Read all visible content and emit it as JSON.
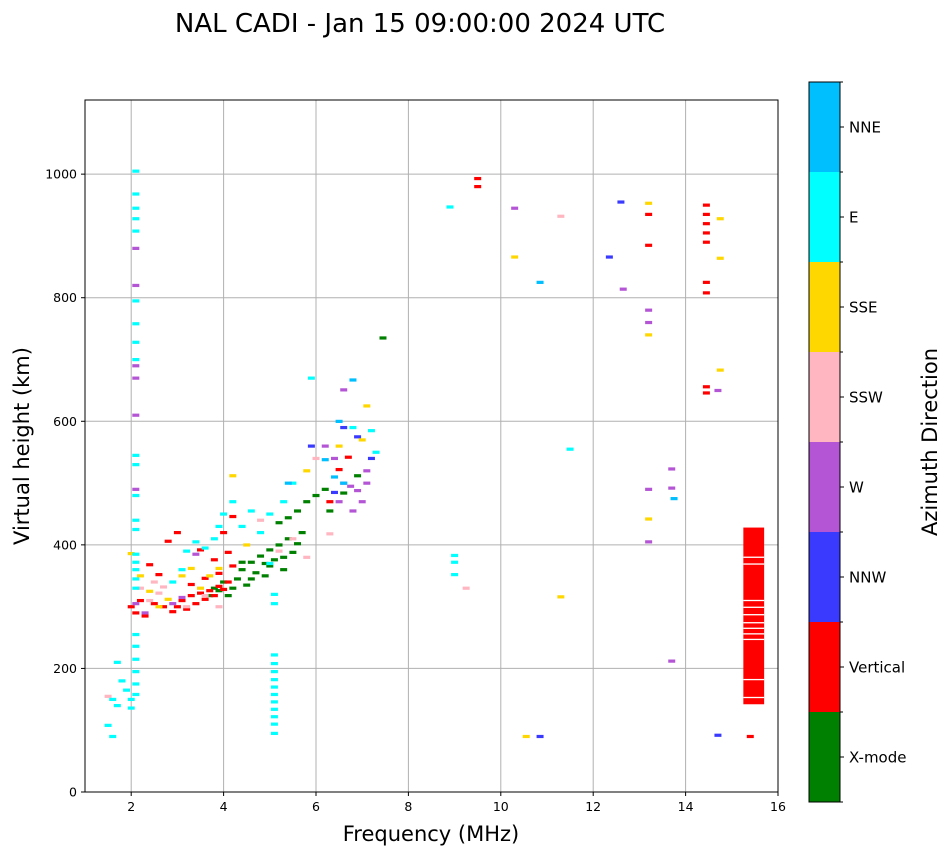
{
  "chart_data": {
    "type": "scatter",
    "title": "NAL CADI - Jan 15 09:00:00 2024 UTC",
    "xlabel": "Frequency (MHz)",
    "ylabel": "Virtual height (km)",
    "xlim": [
      1,
      16
    ],
    "ylim": [
      0,
      1120
    ],
    "x_ticks": [
      "2",
      "4",
      "6",
      "8",
      "10",
      "12",
      "14",
      "16"
    ],
    "y_ticks": [
      "0",
      "200",
      "400",
      "600",
      "800",
      "1000"
    ],
    "grid": true,
    "colorbar": {
      "title": "Azimuth Direction",
      "placement": "right",
      "categories": [
        {
          "name": "X-mode",
          "color": "#008000"
        },
        {
          "name": "Vertical",
          "color": "#ff0000"
        },
        {
          "name": "NNW",
          "color": "#3a3aff"
        },
        {
          "name": "W",
          "color": "#b455d5"
        },
        {
          "name": "SSW",
          "color": "#ffb6c1"
        },
        {
          "name": "SSE",
          "color": "#ffd700"
        },
        {
          "name": "E",
          "color": "#00ffff"
        },
        {
          "name": "NNE",
          "color": "#00bfff"
        }
      ]
    },
    "series": [
      {
        "name": "X-mode",
        "color": "#008000",
        "points": [
          [
            3.7,
            318
          ],
          [
            3.8,
            330
          ],
          [
            3.9,
            326
          ],
          [
            4.0,
            340
          ],
          [
            4.1,
            318
          ],
          [
            4.2,
            330
          ],
          [
            4.3,
            345
          ],
          [
            4.4,
            360
          ],
          [
            4.5,
            335
          ],
          [
            4.6,
            372
          ],
          [
            4.7,
            355
          ],
          [
            4.8,
            382
          ],
          [
            4.9,
            370
          ],
          [
            5.0,
            392
          ],
          [
            5.1,
            376
          ],
          [
            5.2,
            400
          ],
          [
            5.3,
            360
          ],
          [
            5.4,
            410
          ],
          [
            5.5,
            388
          ],
          [
            5.6,
            402
          ],
          [
            5.7,
            420
          ],
          [
            5.2,
            436
          ],
          [
            5.4,
            444
          ],
          [
            5.6,
            455
          ],
          [
            5.8,
            470
          ],
          [
            6.0,
            480
          ],
          [
            6.2,
            490
          ],
          [
            6.3,
            455
          ],
          [
            6.6,
            484
          ],
          [
            6.9,
            512
          ],
          [
            4.6,
            345
          ],
          [
            4.9,
            350
          ],
          [
            7.45,
            735
          ],
          [
            5.0,
            366
          ],
          [
            4.4,
            372
          ],
          [
            5.3,
            380
          ]
        ]
      },
      {
        "name": "Vertical",
        "color": "#ff0000",
        "points": [
          [
            2.0,
            300
          ],
          [
            2.1,
            290
          ],
          [
            2.2,
            310
          ],
          [
            2.3,
            285
          ],
          [
            2.5,
            305
          ],
          [
            2.7,
            300
          ],
          [
            2.9,
            292
          ],
          [
            3.0,
            300
          ],
          [
            3.1,
            310
          ],
          [
            3.2,
            296
          ],
          [
            3.3,
            318
          ],
          [
            3.4,
            305
          ],
          [
            3.5,
            322
          ],
          [
            3.6,
            312
          ],
          [
            3.7,
            326
          ],
          [
            3.8,
            318
          ],
          [
            3.9,
            333
          ],
          [
            4.0,
            328
          ],
          [
            4.1,
            340
          ],
          [
            3.3,
            336
          ],
          [
            3.6,
            346
          ],
          [
            3.9,
            354
          ],
          [
            4.2,
            366
          ],
          [
            4.1,
            388
          ],
          [
            3.8,
            376
          ],
          [
            4.0,
            420
          ],
          [
            4.2,
            446
          ],
          [
            3.5,
            392
          ],
          [
            2.8,
            406
          ],
          [
            3.0,
            420
          ],
          [
            2.6,
            352
          ],
          [
            2.4,
            368
          ],
          [
            6.3,
            470
          ],
          [
            6.5,
            522
          ],
          [
            6.7,
            542
          ],
          [
            9.5,
            993
          ],
          [
            9.5,
            980
          ],
          [
            13.2,
            935
          ],
          [
            13.2,
            885
          ],
          [
            14.45,
            950
          ],
          [
            14.45,
            935
          ],
          [
            14.45,
            920
          ],
          [
            14.45,
            905
          ],
          [
            14.45,
            890
          ],
          [
            14.45,
            825
          ],
          [
            14.45,
            808
          ],
          [
            14.45,
            656
          ],
          [
            14.45,
            646
          ],
          [
            15.4,
            90
          ]
        ]
      },
      {
        "name": "NNW",
        "color": "#3a3aff",
        "points": [
          [
            6.6,
            590
          ],
          [
            6.9,
            575
          ],
          [
            7.2,
            540
          ],
          [
            12.6,
            955
          ],
          [
            12.35,
            866
          ],
          [
            14.7,
            92
          ],
          [
            10.85,
            90
          ],
          [
            6.4,
            485
          ],
          [
            5.9,
            560
          ]
        ]
      },
      {
        "name": "W",
        "color": "#b455d5",
        "points": [
          [
            2.1,
            880
          ],
          [
            2.1,
            820
          ],
          [
            2.1,
            690
          ],
          [
            2.1,
            670
          ],
          [
            2.1,
            610
          ],
          [
            2.1,
            490
          ],
          [
            2.1,
            305
          ],
          [
            2.3,
            290
          ],
          [
            2.9,
            305
          ],
          [
            3.1,
            315
          ],
          [
            3.4,
            385
          ],
          [
            6.6,
            500
          ],
          [
            6.75,
            495
          ],
          [
            6.9,
            488
          ],
          [
            7.0,
            470
          ],
          [
            6.6,
            651
          ],
          [
            6.2,
            560
          ],
          [
            6.4,
            540
          ],
          [
            6.8,
            455
          ],
          [
            7.1,
            500
          ],
          [
            10.3,
            945
          ],
          [
            12.65,
            814
          ],
          [
            13.2,
            780
          ],
          [
            13.2,
            760
          ],
          [
            13.7,
            523
          ],
          [
            13.7,
            492
          ],
          [
            13.2,
            490
          ],
          [
            13.2,
            405
          ],
          [
            13.7,
            212
          ],
          [
            14.7,
            650
          ],
          [
            7.1,
            520
          ],
          [
            6.5,
            470
          ]
        ]
      },
      {
        "name": "SSW",
        "color": "#ffb6c1",
        "points": [
          [
            1.5,
            155
          ],
          [
            2.2,
            330
          ],
          [
            2.4,
            310
          ],
          [
            2.6,
            322
          ],
          [
            2.7,
            332
          ],
          [
            2.5,
            340
          ],
          [
            3.2,
            300
          ],
          [
            3.6,
            318
          ],
          [
            3.9,
            300
          ],
          [
            5.2,
            390
          ],
          [
            5.8,
            380
          ],
          [
            6.3,
            418
          ],
          [
            6.0,
            540
          ],
          [
            9.25,
            330
          ],
          [
            11.3,
            932
          ],
          [
            5.5,
            410
          ],
          [
            4.8,
            440
          ]
        ]
      },
      {
        "name": "SSE",
        "color": "#ffd700",
        "points": [
          [
            2.0,
            386
          ],
          [
            2.2,
            350
          ],
          [
            2.4,
            325
          ],
          [
            2.6,
            300
          ],
          [
            2.8,
            312
          ],
          [
            3.1,
            350
          ],
          [
            3.3,
            362
          ],
          [
            3.5,
            330
          ],
          [
            3.7,
            350
          ],
          [
            3.9,
            362
          ],
          [
            4.2,
            512
          ],
          [
            5.8,
            520
          ],
          [
            7.0,
            570
          ],
          [
            7.1,
            625
          ],
          [
            10.3,
            866
          ],
          [
            10.55,
            90
          ],
          [
            11.3,
            316
          ],
          [
            13.2,
            953
          ],
          [
            13.2,
            740
          ],
          [
            13.2,
            442
          ],
          [
            14.75,
            928
          ],
          [
            14.75,
            864
          ],
          [
            14.75,
            683
          ],
          [
            4.5,
            400
          ],
          [
            6.5,
            560
          ]
        ]
      },
      {
        "name": "E",
        "color": "#00ffff",
        "points": [
          [
            1.5,
            108
          ],
          [
            1.6,
            90
          ],
          [
            1.6,
            150
          ],
          [
            1.7,
            140
          ],
          [
            1.8,
            180
          ],
          [
            1.9,
            165
          ],
          [
            2.0,
            150
          ],
          [
            1.7,
            210
          ],
          [
            2.0,
            136
          ],
          [
            2.1,
            1005
          ],
          [
            2.1,
            968
          ],
          [
            2.1,
            945
          ],
          [
            2.1,
            928
          ],
          [
            2.1,
            908
          ],
          [
            2.1,
            795
          ],
          [
            2.1,
            758
          ],
          [
            2.1,
            728
          ],
          [
            2.1,
            700
          ],
          [
            2.1,
            545
          ],
          [
            2.1,
            530
          ],
          [
            2.1,
            480
          ],
          [
            2.1,
            440
          ],
          [
            2.1,
            425
          ],
          [
            2.1,
            385
          ],
          [
            2.1,
            372
          ],
          [
            2.1,
            360
          ],
          [
            2.1,
            345
          ],
          [
            2.1,
            330
          ],
          [
            2.1,
            255
          ],
          [
            2.1,
            236
          ],
          [
            2.1,
            215
          ],
          [
            2.1,
            195
          ],
          [
            2.1,
            175
          ],
          [
            2.1,
            158
          ],
          [
            2.9,
            340
          ],
          [
            3.1,
            360
          ],
          [
            3.2,
            390
          ],
          [
            3.4,
            405
          ],
          [
            3.6,
            395
          ],
          [
            3.8,
            410
          ],
          [
            3.9,
            430
          ],
          [
            4.0,
            450
          ],
          [
            4.2,
            470
          ],
          [
            4.4,
            430
          ],
          [
            4.6,
            455
          ],
          [
            4.8,
            420
          ],
          [
            5.0,
            450
          ],
          [
            5.3,
            470
          ],
          [
            5.5,
            500
          ],
          [
            5.0,
            370
          ],
          [
            5.1,
            320
          ],
          [
            5.1,
            305
          ],
          [
            5.1,
            222
          ],
          [
            5.1,
            208
          ],
          [
            5.1,
            195
          ],
          [
            5.1,
            182
          ],
          [
            5.1,
            170
          ],
          [
            5.1,
            158
          ],
          [
            5.1,
            146
          ],
          [
            5.1,
            134
          ],
          [
            5.1,
            122
          ],
          [
            5.1,
            110
          ],
          [
            5.1,
            95
          ],
          [
            5.9,
            670
          ],
          [
            6.8,
            590
          ],
          [
            7.2,
            585
          ],
          [
            7.3,
            550
          ],
          [
            8.9,
            947
          ],
          [
            9.0,
            383
          ],
          [
            9.0,
            372
          ],
          [
            9.0,
            352
          ],
          [
            11.5,
            555
          ]
        ]
      },
      {
        "name": "NNE",
        "color": "#00bfff",
        "points": [
          [
            6.8,
            667
          ],
          [
            6.5,
            600
          ],
          [
            6.2,
            538
          ],
          [
            6.4,
            510
          ],
          [
            5.4,
            500
          ],
          [
            10.85,
            825
          ],
          [
            13.75,
            475
          ],
          [
            6.6,
            500
          ]
        ]
      }
    ],
    "bands": [
      {
        "series": "Vertical",
        "x": [
          15.25,
          15.7
        ],
        "y": [
          142,
          428
        ]
      }
    ]
  }
}
